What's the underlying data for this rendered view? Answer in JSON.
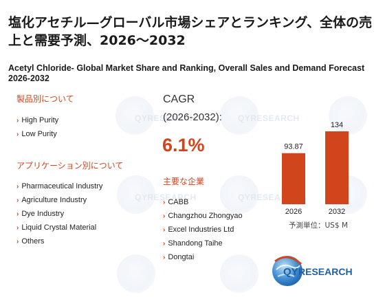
{
  "title_jp": "塩化アセチル—グローバル市場シェアとランキング、全体の売上と需要予測、2026～2032",
  "title_en": "Acetyl Chloride- Global Market Share and Ranking, Overall Sales and Demand Forecast 2026-2032",
  "watermark": "QYRESEARCH",
  "product_section": {
    "heading": "製品別について",
    "items": [
      "High Purity",
      "Low Purity"
    ]
  },
  "application_section": {
    "heading": "アプリケーション別について",
    "items": [
      "Pharmaceutical Industry",
      "Agriculture Industry",
      "Dye Industry",
      "Liquid Crystal Material",
      "Others"
    ]
  },
  "cagr": {
    "label": "CAGR",
    "period": "(2026-2032):",
    "value": "6.1%"
  },
  "companies_section": {
    "heading": "主要な企業",
    "items": [
      "CABB",
      "Changzhou Zhongyao",
      "Excel Industries Ltd",
      "Shandong Taihe",
      "Dongtai"
    ]
  },
  "chart_data": {
    "type": "bar",
    "categories": [
      "2026",
      "2032"
    ],
    "values": [
      93.87,
      134
    ],
    "value_labels": [
      "93.87",
      "134"
    ],
    "ylim": [
      0,
      134
    ],
    "color": "#d0451b",
    "unit_note": "予測単位：US$ M"
  },
  "logo": {
    "brand": "QYRESEARCH",
    "brand_prefix": "QY",
    "brand_suffix": "RESEARCH",
    "colors": {
      "blue": "#1f5fa8",
      "red": "#d0451b"
    }
  }
}
